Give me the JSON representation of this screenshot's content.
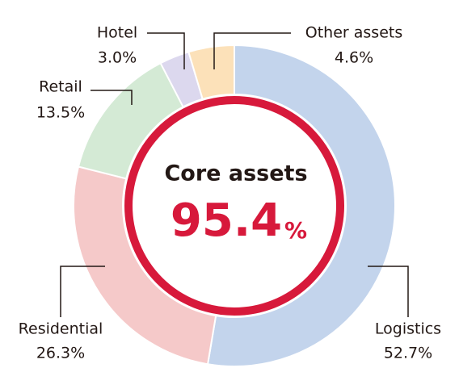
{
  "chart_data": {
    "type": "donut",
    "categories": [
      "Logistics",
      "Residential",
      "Retail",
      "Hotel",
      "Other assets"
    ],
    "values": [
      52.7,
      26.3,
      13.5,
      3.0,
      4.6
    ],
    "value_labels": [
      "52.7%",
      "26.3%",
      "13.5%",
      "3.0%",
      "4.6%"
    ],
    "colors": [
      "#c3d4ec",
      "#f5c9c9",
      "#d4eAd5",
      "#dcd8ee",
      "#fce1b9"
    ],
    "center_label": "Core assets",
    "center_value": "95.4",
    "center_unit": "%",
    "accent_color": "#d7193b"
  }
}
